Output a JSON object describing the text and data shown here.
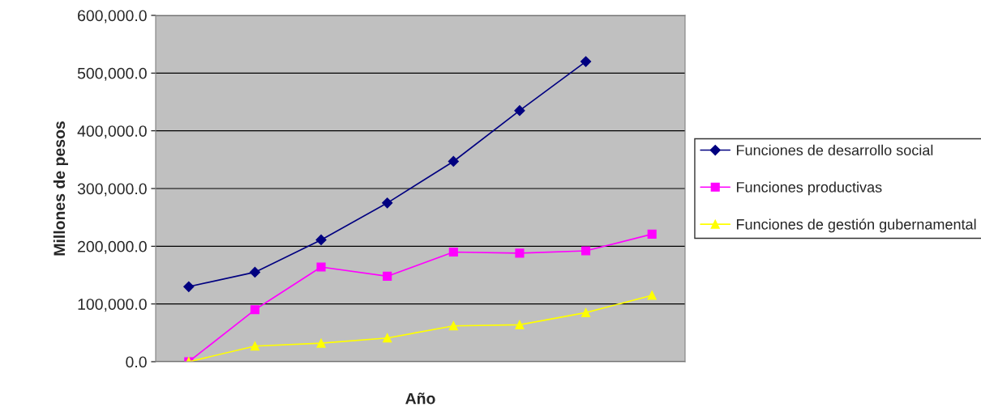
{
  "chart_data": {
    "type": "line",
    "xlabel": "Año",
    "ylabel": "Millones de pesos",
    "categories": [
      null,
      null,
      null,
      null,
      null,
      null,
      null,
      null
    ],
    "series": [
      {
        "name": "Funciones de desarrollo social",
        "color": "#000080",
        "marker": "diamond",
        "values": [
          130000,
          155000,
          211000,
          275000,
          347000,
          435000,
          520000,
          null
        ]
      },
      {
        "name": "Funciones productivas",
        "color": "#ff00ff",
        "marker": "square",
        "values": [
          0,
          90000,
          164000,
          148000,
          190000,
          188000,
          192000,
          221000
        ]
      },
      {
        "name": "Funciones de gestión gubernamental",
        "color": "#ffff00",
        "marker": "triangle",
        "values": [
          0,
          27000,
          32000,
          41000,
          62000,
          64000,
          85000,
          115000
        ]
      }
    ],
    "ylim": [
      0,
      600000
    ],
    "yticks": [
      {
        "value": 0,
        "label": "0.0"
      },
      {
        "value": 100000,
        "label": "100,000.0"
      },
      {
        "value": 200000,
        "label": "200,000.0"
      },
      {
        "value": 300000,
        "label": "300,000.0"
      },
      {
        "value": 400000,
        "label": "400,000.0"
      },
      {
        "value": 500000,
        "label": "500,000.0"
      },
      {
        "value": 600000,
        "label": "600,000.0"
      }
    ],
    "grid": "y",
    "legend": "right",
    "line_style": "solid"
  }
}
